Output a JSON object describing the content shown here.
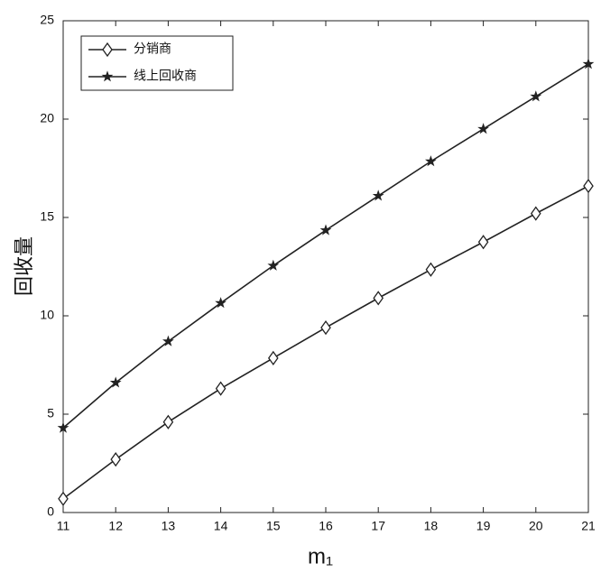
{
  "chart_data": {
    "type": "line",
    "xlabel": "m₁",
    "ylabel": "回收量",
    "x": [
      11,
      12,
      13,
      14,
      15,
      16,
      17,
      18,
      19,
      20,
      21
    ],
    "series": [
      {
        "name": "分销商",
        "color": "#222222",
        "marker": "diamond",
        "values": [
          0.7,
          2.7,
          4.6,
          6.3,
          7.85,
          9.4,
          10.9,
          12.35,
          13.75,
          15.2,
          16.6
        ]
      },
      {
        "name": "线上回收商",
        "color": "#222222",
        "marker": "star",
        "values": [
          4.3,
          6.6,
          8.7,
          10.65,
          12.55,
          14.35,
          16.1,
          17.85,
          19.5,
          21.15,
          22.8
        ]
      }
    ],
    "xlim": [
      11,
      21
    ],
    "xticks": [
      11,
      12,
      13,
      14,
      15,
      16,
      17,
      18,
      19,
      20,
      21
    ],
    "ylim": [
      0,
      25
    ],
    "yticks": [
      0,
      5,
      10,
      15,
      20,
      25
    ],
    "grid": false,
    "legend": "upper-left"
  }
}
